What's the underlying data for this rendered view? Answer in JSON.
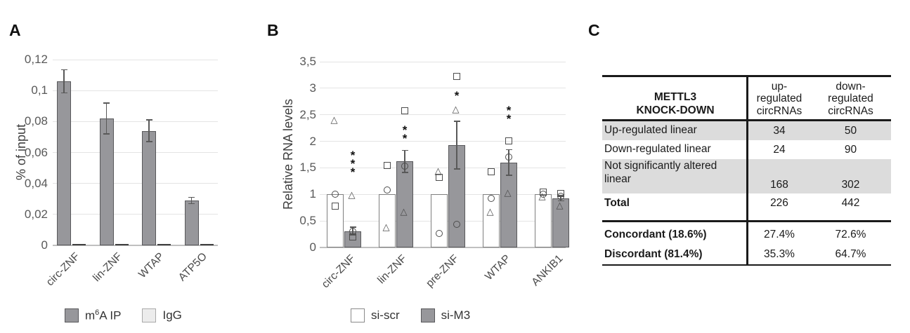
{
  "panels": {
    "a": {
      "label": "A"
    },
    "b": {
      "label": "B"
    },
    "c": {
      "label": "C"
    }
  },
  "colors": {
    "bar_fill": "#97979b",
    "bar_border": "#58585b",
    "white_bar_border": "#7f7f7f",
    "igg_fill": "#c4c4c6",
    "gridline": "#e4e4e4",
    "axis_line": "#c0c0c0",
    "tick_text": "#595959",
    "marker_stroke": "#4d4d4d",
    "table_shade": "#dcdcdc",
    "table_border": "#1a1a1a"
  },
  "chart_data": [
    {
      "id": "chartA",
      "type": "bar",
      "title": "",
      "ylabel": "% of input",
      "ylim": [
        0,
        0.12
      ],
      "grid": true,
      "legend_position": "bottom",
      "ytick_values": [
        0,
        0.02,
        0.04,
        0.06,
        0.08,
        0.1,
        0.12
      ],
      "ytick_labels": [
        "0",
        "0,02",
        "0,04",
        "0,06",
        "0,08",
        "0,1",
        "0,12"
      ],
      "categories": [
        "circ-ZNF",
        "lin-ZNF",
        "WTAP",
        "ATP5O"
      ],
      "series": [
        {
          "name": "m6A IP",
          "values": [
            0.106,
            0.082,
            0.074,
            0.029
          ],
          "errors": [
            0.0075,
            0.01,
            0.007,
            0.002
          ]
        },
        {
          "name": "IgG",
          "values": [
            0.001,
            0.001,
            0.001,
            0.001
          ],
          "errors": [
            0,
            0,
            0,
            0
          ]
        }
      ],
      "legend": [
        {
          "pre": "m",
          "sup": "6",
          "post": "A IP"
        },
        {
          "pre": "IgG",
          "sup": "",
          "post": ""
        }
      ]
    },
    {
      "id": "chartB",
      "type": "bar",
      "title": "",
      "ylabel": "Relative RNA levels",
      "ylim": [
        0,
        3.5
      ],
      "grid": true,
      "legend_position": "bottom",
      "ytick_values": [
        0,
        0.5,
        1,
        1.5,
        2,
        2.5,
        3,
        3.5
      ],
      "ytick_labels": [
        "0",
        "0,5",
        "1",
        "1,5",
        "2",
        "2,5",
        "3",
        "3,5"
      ],
      "categories": [
        "circ-ZNF",
        "lin-ZNF",
        "pre-ZNF",
        "WTAP",
        "ANKIB1"
      ],
      "series": [
        {
          "name": "si-scr",
          "values": [
            1,
            1,
            1,
            1,
            1
          ],
          "errors": [
            0,
            0,
            0,
            0,
            0
          ],
          "points": [
            [
              {
                "m": "circle",
                "v": 1.0
              },
              {
                "m": "square",
                "v": 0.78
              },
              {
                "m": "triangle",
                "v": 2.4
              }
            ],
            [
              {
                "m": "square",
                "v": 1.55
              },
              {
                "m": "circle",
                "v": 1.08
              },
              {
                "m": "triangle",
                "v": 0.37
              }
            ],
            [
              {
                "m": "triangle",
                "v": 1.43
              },
              {
                "m": "square",
                "v": 1.32
              },
              {
                "m": "circle",
                "v": 0.27
              }
            ],
            [
              {
                "m": "square",
                "v": 1.43
              },
              {
                "m": "circle",
                "v": 0.92
              },
              {
                "m": "triangle",
                "v": 0.67
              }
            ],
            [
              {
                "m": "square",
                "v": 1.05
              },
              {
                "m": "circle",
                "v": 1.0
              },
              {
                "m": "triangle",
                "v": 0.96
              }
            ]
          ]
        },
        {
          "name": "si-M3",
          "values": [
            0.31,
            1.62,
            1.93,
            1.6,
            0.93
          ],
          "errors": [
            0.07,
            0.21,
            0.45,
            0.24,
            0.05
          ],
          "points": [
            [
              {
                "m": "triangle",
                "v": 0.98
              },
              {
                "m": "circle",
                "v": 0.3
              },
              {
                "m": "square",
                "v": 0.2
              }
            ],
            [
              {
                "m": "square",
                "v": 2.57
              },
              {
                "m": "circle",
                "v": 1.53
              },
              {
                "m": "triangle",
                "v": 0.67
              }
            ],
            [
              {
                "m": "square",
                "v": 3.22
              },
              {
                "m": "triangle",
                "v": 2.6
              },
              {
                "m": "circle",
                "v": 0.43
              }
            ],
            [
              {
                "m": "square",
                "v": 2.01
              },
              {
                "m": "circle",
                "v": 1.7
              },
              {
                "m": "triangle",
                "v": 1.02
              }
            ],
            [
              {
                "m": "square",
                "v": 1.02
              },
              {
                "m": "circle",
                "v": 0.97
              },
              {
                "m": "triangle",
                "v": 0.78
              }
            ]
          ]
        }
      ],
      "significance": [
        {
          "category": "circ-ZNF",
          "text": "***",
          "y": 1.57
        },
        {
          "category": "lin-ZNF",
          "text": "**",
          "y": 2.12
        },
        {
          "category": "pre-ZNF",
          "text": "*",
          "y": 2.85
        },
        {
          "category": "WTAP",
          "text": "**",
          "y": 2.5
        }
      ],
      "legend": [
        "si-scr",
        "si-M3"
      ]
    }
  ],
  "table": {
    "header": {
      "col1": "METTL3\nKNOCK-DOWN",
      "col2": "up-\nregulated\ncircRNAs",
      "col3": "down-\nregulated\ncircRNAs"
    },
    "rows": [
      {
        "label": "Up-regulated linear",
        "v1": "34",
        "v2": "50",
        "shaded": true,
        "tall": false,
        "bold": false
      },
      {
        "label": "Down-regulated linear",
        "v1": "24",
        "v2": "90",
        "shaded": false,
        "tall": false,
        "bold": false
      },
      {
        "label": "Not significantly altered linear",
        "v1": "168",
        "v2": "302",
        "shaded": true,
        "tall": true,
        "bold": false
      },
      {
        "label": "Total",
        "v1": "226",
        "v2": "442",
        "shaded": false,
        "tall": false,
        "bold": true
      }
    ],
    "summary_rows": [
      {
        "label": "Concordant (18.6%)",
        "v1": "27.4%",
        "v2": "72.6%"
      },
      {
        "label": "Discordant (81.4%)",
        "v1": "35.3%",
        "v2": "64.7%"
      }
    ]
  }
}
